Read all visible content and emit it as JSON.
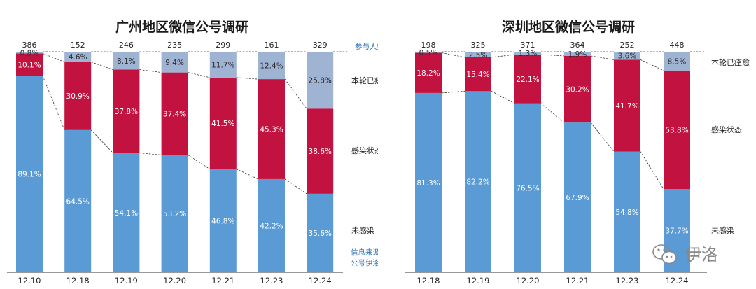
{
  "colors": {
    "not_infected": "#5b9bd5",
    "infected": "#c2123f",
    "recovered": "#9fb3d3",
    "axis": "#333333",
    "source_text": "#2e6fb5"
  },
  "side_labels": {
    "participants": "参与人数",
    "recovered": "本轮已痊愈",
    "infected": "感染状态",
    "not_infected": "未感染",
    "source_line1": "信息来源",
    "source_line2": "公号伊洛"
  },
  "watermark": {
    "icon": "wechat-icon",
    "text": "伊洛"
  },
  "chart_data": [
    {
      "type": "bar",
      "stacked": true,
      "title": "广州地区微信公号调研",
      "categories": [
        "12.10",
        "12.18",
        "12.19",
        "12.20",
        "12.21",
        "12.23",
        "12.24"
      ],
      "participants": [
        "386",
        "152",
        "246",
        "235",
        "299",
        "161",
        "329"
      ],
      "series": [
        {
          "name": "未感染",
          "values": [
            89.1,
            64.5,
            54.1,
            53.2,
            46.8,
            42.2,
            35.6
          ],
          "labels": [
            "89.1%",
            "64.5%",
            "54.1%",
            "53.2%",
            "46.8%",
            "42.2%",
            "35.6%"
          ]
        },
        {
          "name": "感染状态",
          "values": [
            10.1,
            30.9,
            37.8,
            37.4,
            41.5,
            45.3,
            38.6
          ],
          "labels": [
            "10.1%",
            "30.9%",
            "37.8%",
            "37.4%",
            "41.5%",
            "45.3%",
            "38.6%"
          ]
        },
        {
          "name": "本轮已痊愈",
          "values": [
            0.8,
            4.6,
            8.1,
            9.4,
            11.7,
            12.4,
            25.8
          ],
          "labels": [
            "0.8%",
            "4.6%",
            "8.1%",
            "9.4%",
            "11.7%",
            "12.4%",
            "25.8%"
          ]
        }
      ],
      "ylim": [
        0,
        100
      ],
      "connector_lines": "dashed"
    },
    {
      "type": "bar",
      "stacked": true,
      "title": "深圳地区微信公号调研",
      "categories": [
        "12.18",
        "12.19",
        "12.20",
        "12.21",
        "12.23",
        "12.24"
      ],
      "participants": [
        "198",
        "325",
        "371",
        "364",
        "252",
        "448"
      ],
      "series": [
        {
          "name": "未感染",
          "values": [
            81.3,
            82.2,
            76.5,
            67.9,
            54.8,
            37.7
          ],
          "labels": [
            "81.3%",
            "82.2%",
            "76.5%",
            "67.9%",
            "54.8%",
            "37.7%"
          ]
        },
        {
          "name": "感染状态",
          "values": [
            18.2,
            15.4,
            22.1,
            30.2,
            41.7,
            53.8
          ],
          "labels": [
            "18.2%",
            "15.4%",
            "22.1%",
            "30.2%",
            "41.7%",
            "53.8%"
          ]
        },
        {
          "name": "本轮已痊愈",
          "values": [
            0.5,
            2.5,
            1.3,
            1.9,
            3.6,
            8.5
          ],
          "labels": [
            "0.5%",
            "2.5%",
            "1.3%",
            "1.9%",
            "3.6%",
            "8.5%"
          ]
        }
      ],
      "ylim": [
        0,
        100
      ],
      "connector_lines": "dashed"
    }
  ]
}
